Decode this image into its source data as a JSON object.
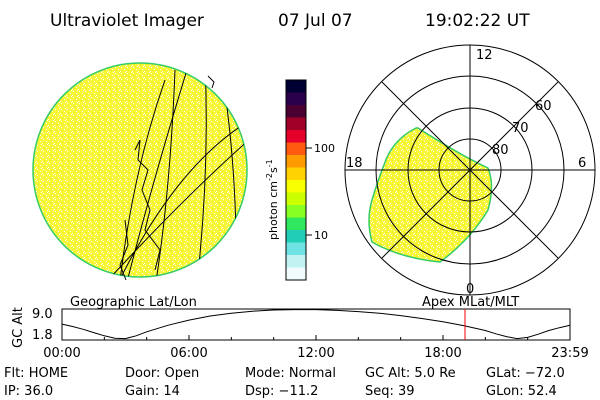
{
  "header": {
    "instrument": "Ultraviolet Imager",
    "date": "07 Jul 07",
    "time": "19:02:22 UT"
  },
  "geo_panel": {
    "label": "Geographic Lat/Lon"
  },
  "polar_panel": {
    "label": "Apex MLat/MLT",
    "mlt_labels": [
      "12",
      "18",
      "6",
      "0"
    ],
    "lat_labels": [
      "60",
      "70",
      "80"
    ]
  },
  "colorbar": {
    "unit_label": "photon cm",
    "unit_exp1": "-2",
    "unit_s": "s",
    "unit_exp2": "-1",
    "scale": "log",
    "ticks": [
      "100",
      "10"
    ],
    "colors_top_to_bottom": [
      "#000033",
      "#2a004d",
      "#4b0033",
      "#a00028",
      "#e4002a",
      "#ff5a10",
      "#ff9a00",
      "#ffd200",
      "#f7ff00",
      "#ccff00",
      "#88ff22",
      "#30e860",
      "#22cdb5",
      "#6fe3e3",
      "#c2f2f2",
      "#f2fbfb"
    ]
  },
  "chart_data": {
    "type": "line",
    "title": "",
    "xlabel": "",
    "ylabel": "GC Alt",
    "x_tick_labels": [
      "00:00",
      "06:00",
      "12:00",
      "18:00",
      "23:59"
    ],
    "y_tick_labels": [
      "9.0",
      "1.8"
    ],
    "xlim_hours": [
      0,
      24
    ],
    "ylim_re": [
      1.8,
      9.0
    ],
    "series": [
      {
        "x_hours": [
          0,
          0.5,
          1,
          1.5,
          2,
          2.5,
          3,
          3.5,
          4,
          5,
          6,
          7,
          8,
          9,
          10,
          11,
          12,
          13,
          14,
          15,
          16,
          17,
          18,
          19,
          20,
          20.5,
          21,
          21.5,
          22,
          22.5,
          23,
          23.5,
          24
        ],
        "y_re": [
          5.5,
          4.9,
          4.2,
          3.4,
          2.6,
          2.0,
          1.9,
          2.6,
          3.6,
          5.2,
          6.5,
          7.5,
          8.2,
          8.7,
          9.0,
          9.1,
          9.1,
          8.9,
          8.6,
          8.2,
          7.6,
          6.9,
          6.1,
          5.1,
          3.9,
          3.1,
          2.4,
          1.9,
          2.2,
          3.0,
          3.9,
          4.6,
          5.2
        ]
      }
    ],
    "current_time_marker_hours": 19.04,
    "marker_color": "#ff0000"
  },
  "status": {
    "row1": [
      "Flt: HOME",
      "Door: Open",
      "Mode: Normal",
      "GC Alt: 5.0 Re",
      "GLat: −72.0"
    ],
    "row2": [
      "IP: 36.0",
      "Gain: 14",
      "Dsp: −11.2",
      "Seq: 39",
      "GLon: 52.4"
    ]
  },
  "style": {
    "aurora_fill": "#f5f530",
    "aurora_edge": "#33cc66"
  }
}
